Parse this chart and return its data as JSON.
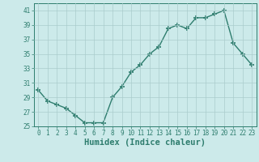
{
  "x": [
    0,
    1,
    2,
    3,
    4,
    5,
    6,
    7,
    8,
    9,
    10,
    11,
    12,
    13,
    14,
    15,
    16,
    17,
    18,
    19,
    20,
    21,
    22,
    23
  ],
  "y": [
    30.0,
    28.5,
    28.0,
    27.5,
    26.5,
    25.5,
    25.5,
    25.5,
    29.0,
    30.5,
    32.5,
    33.5,
    35.0,
    36.0,
    38.5,
    39.0,
    38.5,
    40.0,
    40.0,
    40.5,
    41.0,
    36.5,
    35.0,
    33.5
  ],
  "line_color": "#2e7d6e",
  "marker": "+",
  "marker_size": 4,
  "line_width": 1.0,
  "bg_color": "#cceaea",
  "grid_color": "#aacccc",
  "xlabel": "Humidex (Indice chaleur)",
  "ylabel": "",
  "xlim": [
    -0.5,
    23.5
  ],
  "ylim": [
    25,
    42
  ],
  "yticks": [
    25,
    27,
    29,
    31,
    33,
    35,
    37,
    39,
    41
  ],
  "xticks": [
    0,
    1,
    2,
    3,
    4,
    5,
    6,
    7,
    8,
    9,
    10,
    11,
    12,
    13,
    14,
    15,
    16,
    17,
    18,
    19,
    20,
    21,
    22,
    23
  ],
  "tick_label_fontsize": 5.5,
  "xlabel_fontsize": 7.5
}
